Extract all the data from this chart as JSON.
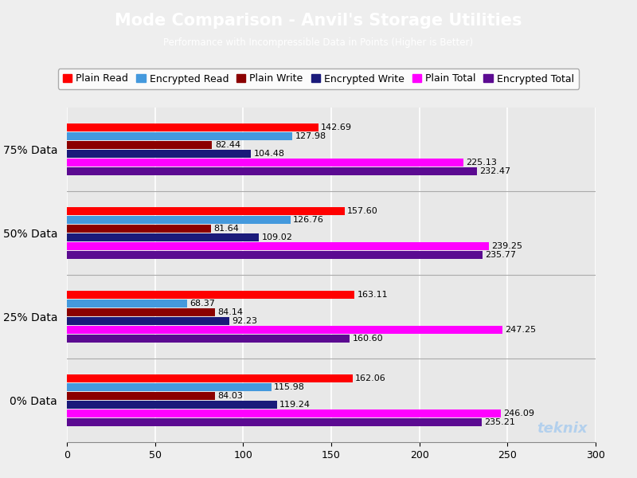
{
  "title": "Mode Comparison - Anvil's Storage Utilities",
  "subtitle": "Performance with Incompressible Data in Points (Higher is Better)",
  "title_bg_color": "#19AADF",
  "title_text_color": "#FFFFFF",
  "chart_bg_color": "#EEEEEE",
  "plot_bg_color": "#E8E8E8",
  "categories": [
    "75% Data",
    "50% Data",
    "25% Data",
    "0% Data"
  ],
  "series": [
    {
      "label": "Plain Read",
      "color": "#FF0000",
      "values": [
        142.69,
        157.6,
        163.11,
        162.06
      ]
    },
    {
      "label": "Encrypted Read",
      "color": "#4499DD",
      "values": [
        127.98,
        126.76,
        68.37,
        115.98
      ]
    },
    {
      "label": "Plain Write",
      "color": "#8B0000",
      "values": [
        82.44,
        81.64,
        84.14,
        84.03
      ]
    },
    {
      "label": "Encrypted Write",
      "color": "#1A1A7A",
      "values": [
        104.48,
        109.02,
        92.23,
        119.24
      ]
    },
    {
      "label": "Plain Total",
      "color": "#FF00FF",
      "values": [
        225.13,
        239.25,
        247.25,
        246.09
      ]
    },
    {
      "label": "Encrypted Total",
      "color": "#5B0A91",
      "values": [
        232.47,
        235.77,
        160.6,
        235.21
      ]
    }
  ],
  "xlim": [
    0,
    300
  ],
  "xticks": [
    0,
    50,
    100,
    150,
    200,
    250,
    300
  ],
  "label_fontsize": 8,
  "legend_fontsize": 9,
  "watermark": "teknix"
}
